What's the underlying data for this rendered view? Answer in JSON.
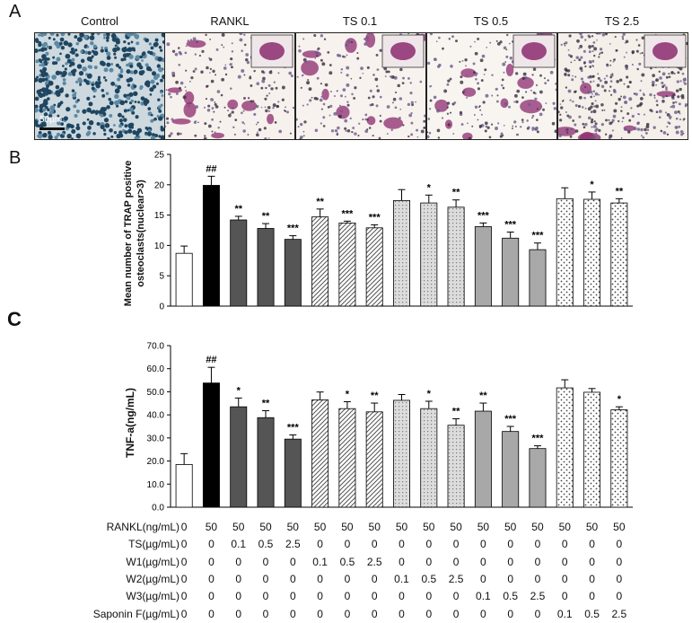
{
  "panel_a": {
    "letter": "A",
    "captions": [
      "Control",
      "RANKL",
      "TS 0.1",
      "TS 0.5",
      "TS 2.5"
    ],
    "scale_bar": "50µm"
  },
  "chart_data": [
    {
      "panel": "B",
      "type": "bar",
      "ylabel_line1": "Mean number of TRAP positive",
      "ylabel_line2": "osteoclasts(nuclear>3)",
      "ylim": [
        0,
        25
      ],
      "yticks": [
        "0",
        "5",
        "10",
        "15",
        "20",
        "25"
      ],
      "values": [
        8.7,
        19.9,
        14.2,
        12.8,
        11.0,
        14.7,
        13.7,
        12.9,
        17.4,
        17.0,
        16.3,
        13.1,
        11.2,
        9.3,
        17.7,
        17.6,
        17.0
      ],
      "errors": [
        1.2,
        1.5,
        0.6,
        0.8,
        0.6,
        1.3,
        0.3,
        0.5,
        1.8,
        1.3,
        1.2,
        0.6,
        1.0,
        1.1,
        1.8,
        1.2,
        0.7
      ],
      "labels": [
        "",
        "##",
        "**",
        "**",
        "***",
        "**",
        "***",
        "***",
        "",
        "*",
        "**",
        "***",
        "***",
        "***",
        "",
        "*",
        "**"
      ]
    },
    {
      "panel": "C",
      "type": "bar",
      "ylabel": "TNF-a(ng/mL)",
      "ylim": [
        0,
        70
      ],
      "yticks": [
        "0.0",
        "10.0",
        "20.0",
        "30.0",
        "40.0",
        "50.0",
        "60.0",
        "70.0"
      ],
      "values": [
        18.5,
        53.8,
        43.5,
        38.8,
        29.5,
        46.5,
        42.7,
        41.3,
        46.3,
        42.7,
        35.5,
        41.6,
        32.8,
        25.4,
        51.7,
        49.8,
        42.2
      ],
      "errors": [
        4.7,
        6.8,
        3.8,
        3.0,
        1.8,
        3.4,
        3.0,
        3.8,
        2.5,
        3.2,
        2.8,
        3.5,
        2.2,
        1.2,
        3.5,
        1.6,
        1.3
      ],
      "labels": [
        "",
        "##",
        "*",
        "**",
        "***",
        "",
        "*",
        "**",
        "",
        "*",
        "**",
        "**",
        "***",
        "***",
        "",
        "",
        "*"
      ]
    }
  ],
  "treatment_table": {
    "rows": [
      {
        "label": "RANKL(ng/mL)",
        "values": [
          "0",
          "50",
          "50",
          "50",
          "50",
          "50",
          "50",
          "50",
          "50",
          "50",
          "50",
          "50",
          "50",
          "50",
          "50",
          "50",
          "50"
        ]
      },
      {
        "label": "TS(µg/mL)",
        "values": [
          "0",
          "0",
          "0.1",
          "0.5",
          "2.5",
          "0",
          "0",
          "0",
          "0",
          "0",
          "0",
          "0",
          "0",
          "0",
          "0",
          "0",
          "0"
        ]
      },
      {
        "label": "W1(µg/mL)",
        "values": [
          "0",
          "0",
          "0",
          "0",
          "0",
          "0.1",
          "0.5",
          "2.5",
          "0",
          "0",
          "0",
          "0",
          "0",
          "0",
          "0",
          "0",
          "0"
        ]
      },
      {
        "label": "W2(µg/mL)",
        "values": [
          "0",
          "0",
          "0",
          "0",
          "0",
          "0",
          "0",
          "0",
          "0.1",
          "0.5",
          "2.5",
          "0",
          "0",
          "0",
          "0",
          "0",
          "0"
        ]
      },
      {
        "label": "W3(µg/mL)",
        "values": [
          "0",
          "0",
          "0",
          "0",
          "0",
          "0",
          "0",
          "0",
          "0",
          "0",
          "0",
          "0.1",
          "0.5",
          "2.5",
          "0",
          "0",
          "0"
        ]
      },
      {
        "label": "Saponin F(µg/mL)",
        "values": [
          "0",
          "0",
          "0",
          "0",
          "0",
          "0",
          "0",
          "0",
          "0",
          "0",
          "0",
          "0",
          "0",
          "0",
          "0.1",
          "0.5",
          "2.5"
        ]
      }
    ]
  },
  "bar_styles": [
    "white",
    "black",
    "dark",
    "dark",
    "dark",
    "hatch",
    "hatch",
    "hatch",
    "dots",
    "dots",
    "dots",
    "mid",
    "mid",
    "mid",
    "speckle",
    "speckle",
    "speckle"
  ],
  "colors": {
    "control_bar": "#ffffff",
    "rankl_bar": "#000000",
    "ts_bar": "#555555",
    "w3_bar": "#a8a8a8",
    "trap_stain": "#8c2a6e",
    "control_stain": "#3f6a86"
  }
}
